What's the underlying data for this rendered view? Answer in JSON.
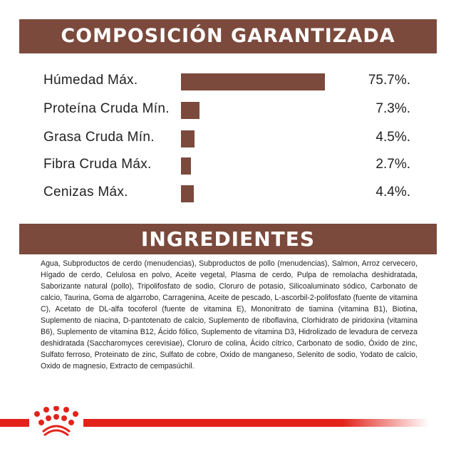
{
  "composition_title": "COMPOSICIÓN GARANTIZADA",
  "ingredients_title": "INGREDIENTES",
  "chart_data": {
    "type": "bar",
    "orientation": "horizontal",
    "title": "COMPOSICIÓN GARANTIZADA",
    "categories": [
      "Húmedad Máx.",
      "Proteína Cruda Mín.",
      "Grasa Cruda Mín.",
      "Fibra Cruda Máx.",
      "Cenizas Máx."
    ],
    "values": [
      75.7,
      7.3,
      4.5,
      2.7,
      4.4
    ],
    "value_labels": [
      "75.7%.",
      "7.3%.",
      "4.5%.",
      "2.7%.",
      "4.4%."
    ],
    "unit": "%",
    "bar_color": "#7b4a3c"
  },
  "ingredients_text": "Agua, Subproductos de cerdo (menudencias), Subproductos de pollo (menudencias), Salmon, Arroz cervecero, Hígado de cerdo, Celulosa en polvo, Aceite vegetal, Plasma de cerdo, Pulpa de remolacha deshidratada, Saborizante natural (pollo), Tripolifosfato de sodio, Cloruro de potasio, Silicoaluminato sódico, Carbonato de calcio, Taurina, Goma de algarrobo, Carragenina, Aceite de pescado, L-ascorbil-2-polifosfato (fuente de vitamina C), Acetato de DL-alfa tocoferol (fuente de vitamina E), Mononitrato de tiamina (vitamina B1), Biotina, Suplemento de niacina, D-pantotenato de calcio, Suplemento de riboflavina, Clorhidrato de piridoxina (vitamina B6), Suplemento de vitamina B12, Ácido fólico, Suplemento de vitamina D3, Hidrolizado de levadura de cerveza deshidratada (Saccharomyces cerevisiae), Cloruro de colina, Ácido cítrico, Carbonato de sodio, Óxido de zinc, Sulfato ferroso, Proteinato de zinc, Sulfato de cobre, Oxido de manganeso, Selenito de sodio, Yodato de calcio, Oxido de magnesio, Extracto de cempasúchil.",
  "brand_color": "#e2231a",
  "logo": "royal-canin-crown"
}
